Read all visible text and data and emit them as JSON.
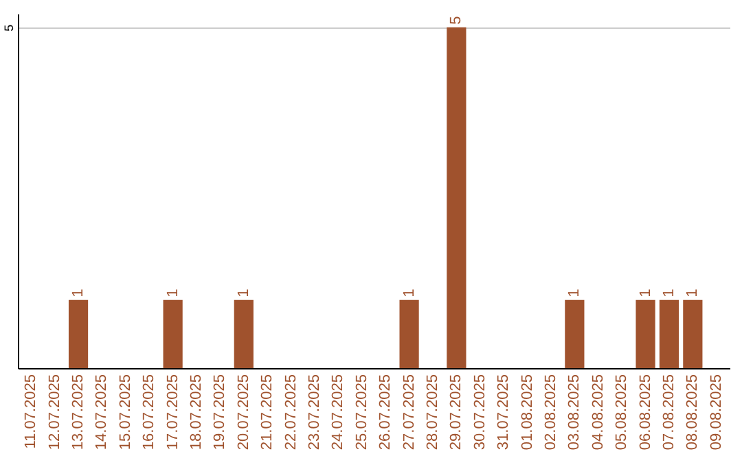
{
  "chart_data": {
    "type": "bar",
    "categories": [
      "11.07.2025",
      "12.07.2025",
      "13.07.2025",
      "14.07.2025",
      "15.07.2025",
      "16.07.2025",
      "17.07.2025",
      "18.07.2025",
      "19.07.2025",
      "20.07.2025",
      "21.07.2025",
      "22.07.2025",
      "23.07.2025",
      "24.07.2025",
      "25.07.2025",
      "26.07.2025",
      "27.07.2025",
      "28.07.2025",
      "29.07.2025",
      "30.07.2025",
      "31.07.2025",
      "01.08.2025",
      "02.08.2025",
      "03.08.2025",
      "04.08.2025",
      "05.08.2025",
      "06.08.2025",
      "07.08.2025",
      "08.08.2025",
      "09.08.2025"
    ],
    "values": [
      0,
      0,
      1,
      0,
      0,
      0,
      1,
      0,
      0,
      1,
      0,
      0,
      0,
      0,
      0,
      0,
      1,
      0,
      5,
      0,
      0,
      0,
      0,
      1,
      0,
      0,
      1,
      1,
      1,
      0
    ],
    "color": "#a0522d",
    "value_labels": [
      null,
      null,
      "1",
      null,
      null,
      null,
      "1",
      null,
      null,
      "1",
      null,
      null,
      null,
      null,
      null,
      null,
      "1",
      null,
      "5",
      null,
      null,
      null,
      null,
      "1",
      null,
      null,
      "1",
      "1",
      "1",
      null
    ],
    "ylim": [
      0,
      5.2
    ],
    "yticks": [
      5
    ],
    "grid": "y"
  }
}
